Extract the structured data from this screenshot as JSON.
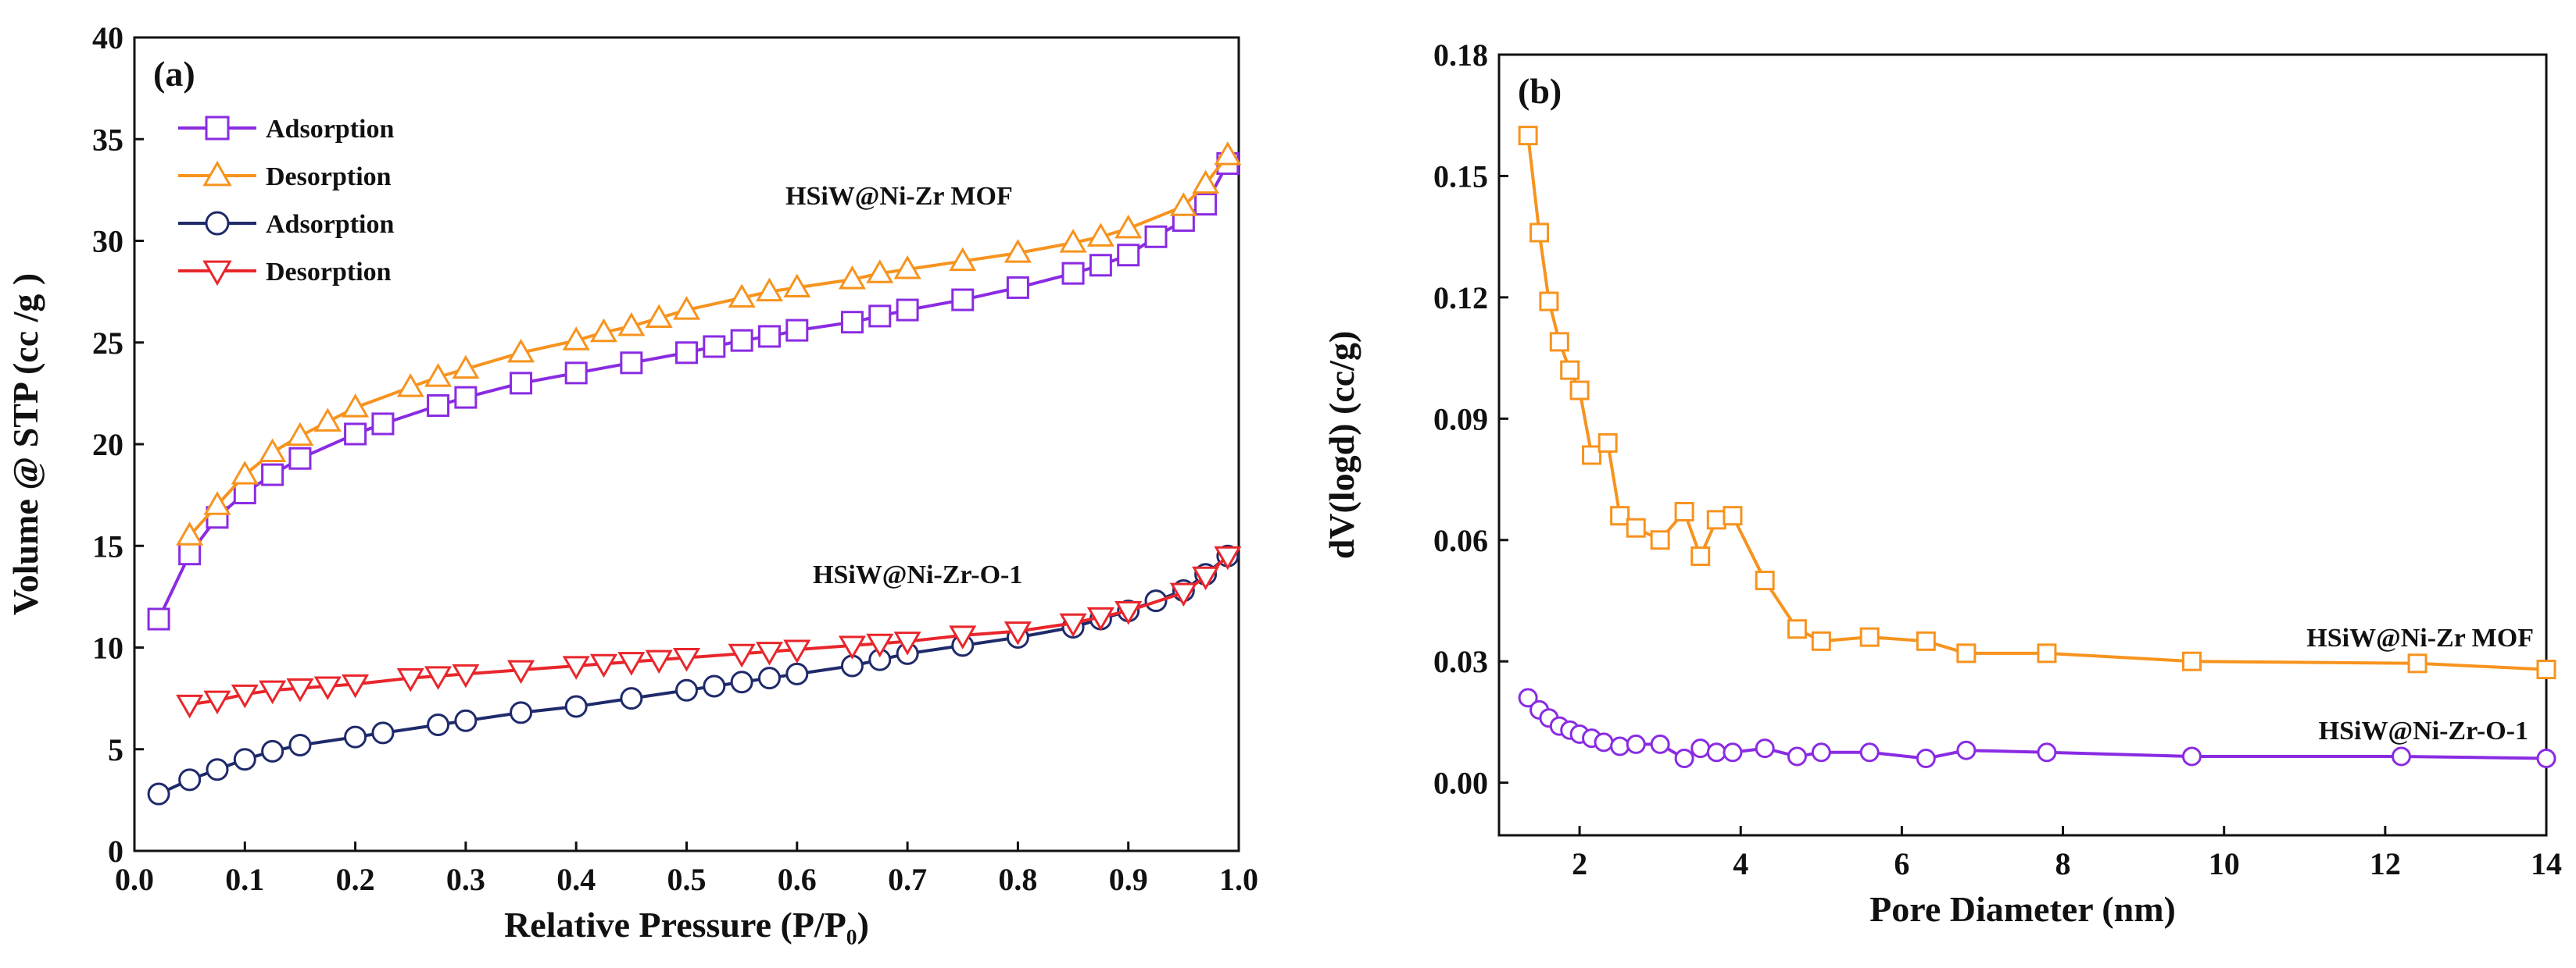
{
  "chart_data": [
    {
      "type": "line",
      "panel": "(a)",
      "xlabel": "Relative Pressure (P/P₀)",
      "ylabel": "Volume @ STP (cc /g )",
      "xlim": [
        0.0,
        1.0
      ],
      "ylim": [
        0,
        40
      ],
      "xticks": [
        "0.0",
        "0.1",
        "0.2",
        "0.3",
        "0.4",
        "0.5",
        "0.6",
        "0.7",
        "0.8",
        "0.9",
        "1.0"
      ],
      "yticks": [
        "0",
        "5",
        "10",
        "15",
        "20",
        "25",
        "30",
        "35",
        "40"
      ],
      "legend_position": "top-left",
      "annotations": [
        "HSiW@Ni-Zr MOF",
        "HSiW@Ni-Zr-O-1"
      ],
      "series": [
        {
          "name": "Adsorption",
          "sample": "HSiW@Ni-Zr MOF",
          "marker": "square",
          "color": "#8a2be2",
          "x": [
            0.022,
            0.05,
            0.075,
            0.1,
            0.125,
            0.15,
            0.2,
            0.225,
            0.275,
            0.3,
            0.35,
            0.4,
            0.45,
            0.5,
            0.525,
            0.55,
            0.575,
            0.6,
            0.65,
            0.675,
            0.7,
            0.75,
            0.8,
            0.85,
            0.875,
            0.9,
            0.925,
            0.95,
            0.97,
            0.99
          ],
          "y": [
            11.4,
            14.6,
            16.4,
            17.6,
            18.5,
            19.3,
            20.5,
            21.0,
            21.9,
            22.3,
            23.0,
            23.5,
            24.0,
            24.5,
            24.8,
            25.1,
            25.3,
            25.6,
            26.0,
            26.3,
            26.6,
            27.1,
            27.7,
            28.4,
            28.8,
            29.3,
            30.2,
            31.0,
            31.8,
            33.8
          ]
        },
        {
          "name": "Desorption",
          "sample": "HSiW@Ni-Zr MOF",
          "marker": "triangle-up",
          "color": "#f7931e",
          "x": [
            0.05,
            0.075,
            0.1,
            0.125,
            0.15,
            0.175,
            0.2,
            0.25,
            0.275,
            0.3,
            0.35,
            0.4,
            0.425,
            0.45,
            0.475,
            0.5,
            0.55,
            0.575,
            0.6,
            0.65,
            0.675,
            0.7,
            0.75,
            0.8,
            0.85,
            0.875,
            0.9,
            0.95,
            0.97,
            0.99
          ],
          "y": [
            15.5,
            17.0,
            18.5,
            19.6,
            20.4,
            21.1,
            21.8,
            22.8,
            23.3,
            23.7,
            24.5,
            25.1,
            25.5,
            25.8,
            26.2,
            26.6,
            27.2,
            27.5,
            27.7,
            28.1,
            28.4,
            28.6,
            29.0,
            29.4,
            29.9,
            30.2,
            30.6,
            31.7,
            32.8,
            34.2
          ]
        },
        {
          "name": "Adsorption",
          "sample": "HSiW@Ni-Zr-O-1",
          "marker": "circle",
          "color": "#1f2a6b",
          "x": [
            0.022,
            0.05,
            0.075,
            0.1,
            0.125,
            0.15,
            0.2,
            0.225,
            0.275,
            0.3,
            0.35,
            0.4,
            0.45,
            0.5,
            0.525,
            0.55,
            0.575,
            0.6,
            0.65,
            0.675,
            0.7,
            0.75,
            0.8,
            0.85,
            0.875,
            0.9,
            0.925,
            0.95,
            0.97,
            0.99
          ],
          "y": [
            2.8,
            3.5,
            4.0,
            4.5,
            4.9,
            5.2,
            5.6,
            5.8,
            6.2,
            6.4,
            6.8,
            7.1,
            7.5,
            7.9,
            8.1,
            8.3,
            8.5,
            8.7,
            9.1,
            9.4,
            9.7,
            10.1,
            10.5,
            11.0,
            11.4,
            11.8,
            12.3,
            12.8,
            13.6,
            14.5
          ]
        },
        {
          "name": "Desorption",
          "sample": "HSiW@Ni-Zr-O-1",
          "marker": "triangle-down",
          "color": "#e8262b",
          "x": [
            0.05,
            0.075,
            0.1,
            0.125,
            0.15,
            0.175,
            0.2,
            0.25,
            0.275,
            0.3,
            0.35,
            0.4,
            0.425,
            0.45,
            0.475,
            0.5,
            0.55,
            0.575,
            0.6,
            0.65,
            0.675,
            0.7,
            0.75,
            0.8,
            0.85,
            0.875,
            0.9,
            0.95,
            0.97,
            0.99
          ],
          "y": [
            7.2,
            7.4,
            7.7,
            7.9,
            8.0,
            8.1,
            8.2,
            8.5,
            8.6,
            8.7,
            8.9,
            9.1,
            9.2,
            9.3,
            9.4,
            9.5,
            9.7,
            9.8,
            9.9,
            10.1,
            10.2,
            10.3,
            10.6,
            10.8,
            11.2,
            11.5,
            11.8,
            12.7,
            13.5,
            14.5
          ]
        }
      ]
    },
    {
      "type": "line",
      "panel": "(b)",
      "xlabel": "Pore Diameter (nm)",
      "ylabel": "dV(logd)  (cc/g)",
      "xlim": [
        1,
        14
      ],
      "ylim": [
        -0.013,
        0.18
      ],
      "xticks": [
        "2",
        "4",
        "6",
        "8",
        "10",
        "12",
        "14"
      ],
      "yticks": [
        "0.00",
        "0.03",
        "0.06",
        "0.09",
        "0.12",
        "0.15",
        "0.18"
      ],
      "annotations": [
        "HSiW@Ni-Zr MOF",
        "HSiW@Ni-Zr-O-1"
      ],
      "series": [
        {
          "name": "HSiW@Ni-Zr MOF",
          "marker": "square",
          "color": "#f7931e",
          "x": [
            1.36,
            1.5,
            1.62,
            1.75,
            1.88,
            2.0,
            2.15,
            2.35,
            2.5,
            2.7,
            3.0,
            3.3,
            3.5,
            3.7,
            3.9,
            4.3,
            4.7,
            5.0,
            5.6,
            6.3,
            6.8,
            7.8,
            9.6,
            12.4,
            14.0
          ],
          "y": [
            0.16,
            0.136,
            0.119,
            0.109,
            0.102,
            0.097,
            0.081,
            0.084,
            0.066,
            0.063,
            0.06,
            0.067,
            0.056,
            0.065,
            0.066,
            0.05,
            0.038,
            0.035,
            0.036,
            0.035,
            0.032,
            0.032,
            0.03,
            0.0295,
            0.028
          ]
        },
        {
          "name": "HSiW@Ni-Zr-O-1",
          "marker": "circle",
          "color": "#8a2be2",
          "x": [
            1.36,
            1.5,
            1.62,
            1.75,
            1.88,
            2.0,
            2.15,
            2.3,
            2.5,
            2.7,
            3.0,
            3.3,
            3.5,
            3.7,
            3.9,
            4.3,
            4.7,
            5.0,
            5.6,
            6.3,
            6.8,
            7.8,
            9.6,
            12.2,
            14.0
          ],
          "y": [
            0.021,
            0.018,
            0.016,
            0.014,
            0.013,
            0.012,
            0.011,
            0.01,
            0.009,
            0.0095,
            0.0095,
            0.006,
            0.0085,
            0.0075,
            0.0075,
            0.0085,
            0.0065,
            0.0075,
            0.0075,
            0.006,
            0.008,
            0.0075,
            0.0065,
            0.0065,
            0.006
          ]
        }
      ]
    }
  ]
}
